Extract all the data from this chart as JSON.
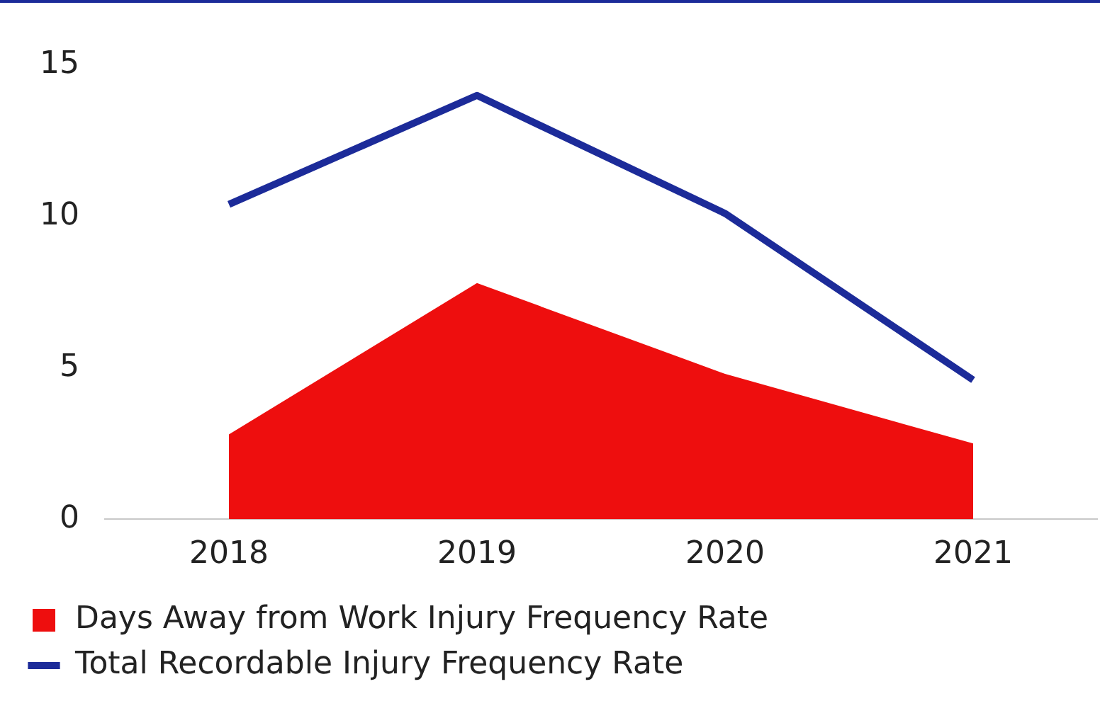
{
  "chart_data": {
    "type": "line",
    "categories": [
      "2018",
      "2019",
      "2020",
      "2021"
    ],
    "series": [
      {
        "name": "Days Away from Work Injury Frequency Rate",
        "type": "area",
        "color": "#ee0e0e",
        "values": [
          2.8,
          7.8,
          4.8,
          2.5
        ]
      },
      {
        "name": "Total Recordable Injury Frequency Rate",
        "type": "line",
        "color": "#1c2b99",
        "values": [
          10.4,
          14.0,
          10.1,
          4.6
        ]
      }
    ],
    "ylim": [
      0,
      15
    ],
    "yticks": [
      0,
      5,
      10,
      15
    ],
    "grid": false,
    "legend": "bottom",
    "marker": "none",
    "line_style": "solid"
  }
}
